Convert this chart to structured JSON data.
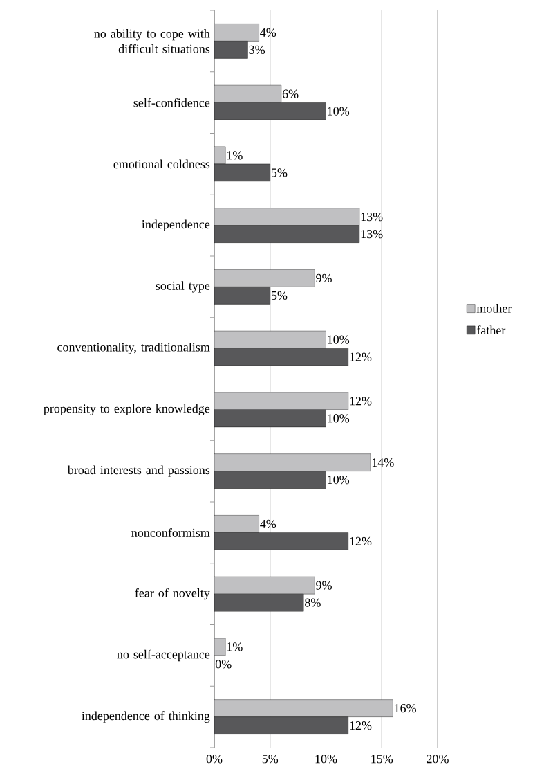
{
  "chart_data": {
    "type": "bar",
    "orientation": "horizontal",
    "categories": [
      "no ability to cope with difficult situations",
      "self-confidence",
      "emotional coldness",
      "independence",
      "social type",
      "conventionality, traditionalism",
      "propensity to explore knowledge",
      "broad interests and passions",
      "nonconformism",
      "fear of novelty",
      "no self-acceptance",
      "independence of thinking"
    ],
    "series": [
      {
        "name": "mother",
        "color": "#c0c0c2",
        "values": [
          4,
          6,
          1,
          13,
          9,
          10,
          12,
          14,
          4,
          9,
          1,
          16
        ],
        "value_labels": [
          "4%",
          "6%",
          "1%",
          "13%",
          "9%",
          "10%",
          "12%",
          "14%",
          "4%",
          "9%",
          "1%",
          "16%"
        ]
      },
      {
        "name": "father",
        "color": "#58585a",
        "values": [
          3,
          10,
          5,
          13,
          5,
          12,
          10,
          10,
          12,
          8,
          0,
          12
        ],
        "value_labels": [
          "3%",
          "10%",
          "5%",
          "13%",
          "5%",
          "12%",
          "10%",
          "10%",
          "12%",
          "8%",
          "0%",
          "12%"
        ]
      }
    ],
    "xlim": [
      0,
      20
    ],
    "xticks": [
      {
        "value": 0,
        "label": "0%"
      },
      {
        "value": 5,
        "label": "5%"
      },
      {
        "value": 10,
        "label": "10%"
      },
      {
        "value": 15,
        "label": "15%"
      },
      {
        "value": 20,
        "label": "20%"
      }
    ],
    "grid": "x",
    "legend": "right"
  }
}
